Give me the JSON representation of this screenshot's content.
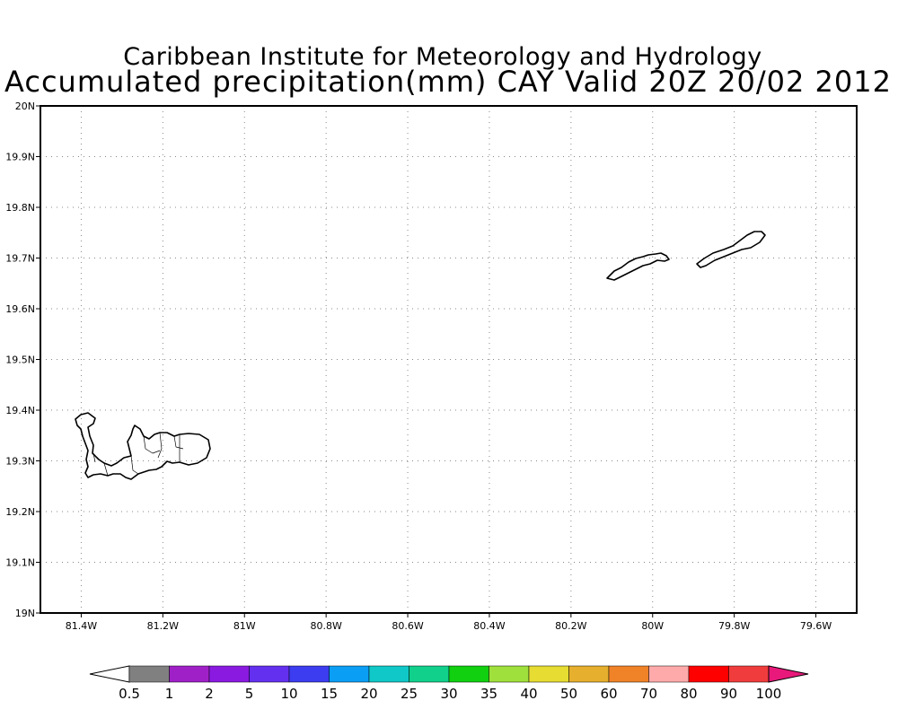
{
  "titles": {
    "line1": "Caribbean Institute for Meteorology and Hydrology",
    "line2": "Accumulated precipitation(mm) CAY Valid 20Z 20/02 2012"
  },
  "map": {
    "extent": {
      "lon": [
        -81.5,
        -79.5
      ],
      "lat": [
        19.0,
        20.0
      ]
    },
    "grid": "dotted",
    "x_ticks": [
      {
        "value": -81.4,
        "label": "81.4W"
      },
      {
        "value": -81.2,
        "label": "81.2W"
      },
      {
        "value": -81.0,
        "label": "81W"
      },
      {
        "value": -80.8,
        "label": "80.8W"
      },
      {
        "value": -80.6,
        "label": "80.6W"
      },
      {
        "value": -80.4,
        "label": "80.4W"
      },
      {
        "value": -80.2,
        "label": "80.2W"
      },
      {
        "value": -80.0,
        "label": "80W"
      },
      {
        "value": -79.8,
        "label": "79.8W"
      },
      {
        "value": -79.6,
        "label": "79.6W"
      }
    ],
    "y_ticks": [
      {
        "value": 20.0,
        "label": "20N"
      },
      {
        "value": 19.9,
        "label": "19.9N"
      },
      {
        "value": 19.8,
        "label": "19.8N"
      },
      {
        "value": 19.7,
        "label": "19.7N"
      },
      {
        "value": 19.6,
        "label": "19.6N"
      },
      {
        "value": 19.5,
        "label": "19.5N"
      },
      {
        "value": 19.4,
        "label": "19.4N"
      },
      {
        "value": 19.3,
        "label": "19.3N"
      },
      {
        "value": 19.2,
        "label": "19.2N"
      },
      {
        "value": 19.1,
        "label": "19.1N"
      },
      {
        "value": 19.0,
        "label": "19N"
      }
    ]
  },
  "colorbar": {
    "under_color": "#ffffff",
    "over_color": "#e8197a",
    "colors": [
      "#808080",
      "#a020c8",
      "#8a1ae0",
      "#6430f0",
      "#3c3cf0",
      "#0a9ef5",
      "#10c8c8",
      "#10d08c",
      "#10d010",
      "#a0e03c",
      "#e6dc32",
      "#e6af2d",
      "#f08228",
      "#ffaaaa",
      "#ff0000",
      "#f03c3c"
    ],
    "labels": [
      "0.5",
      "1",
      "2",
      "5",
      "10",
      "15",
      "20",
      "25",
      "30",
      "35",
      "40",
      "50",
      "60",
      "70",
      "80",
      "90",
      "100"
    ]
  }
}
